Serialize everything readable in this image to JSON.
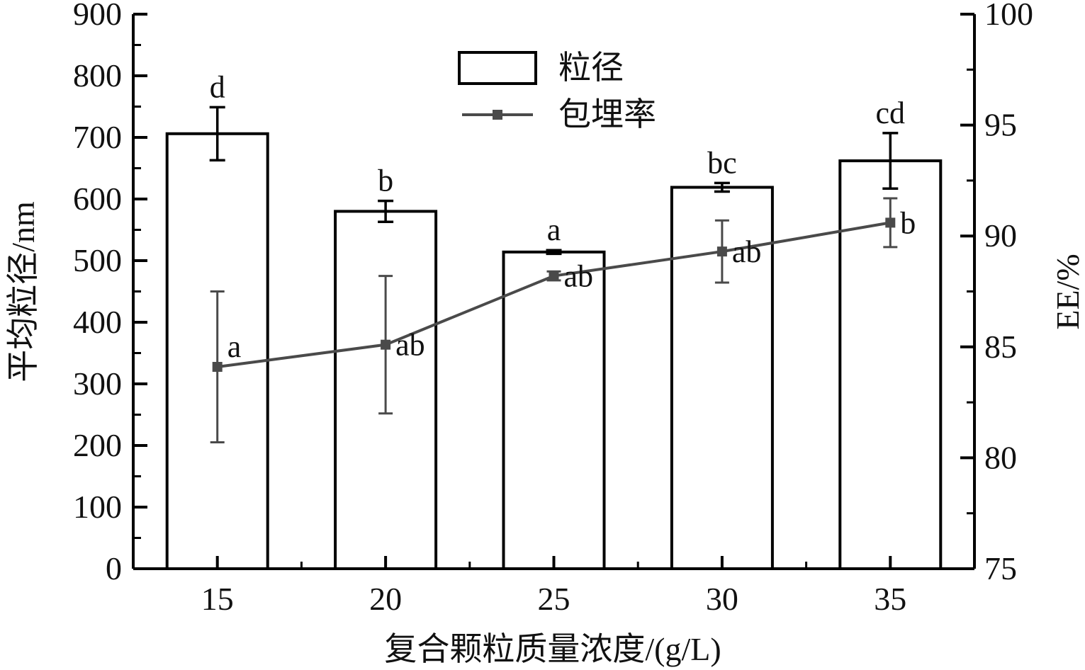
{
  "chart_data": {
    "type": "bar",
    "title": "",
    "categories": [
      "15",
      "20",
      "25",
      "30",
      "35"
    ],
    "xlabel": "复合颗粒质量浓度/(g/L)",
    "ylabel_left": "平均粒径/nm",
    "ylabel_right": "EE/%",
    "ylim_left": [
      0,
      900
    ],
    "ylim_right": [
      75,
      100
    ],
    "yticks_left": [
      "0",
      "100",
      "200",
      "300",
      "400",
      "500",
      "600",
      "700",
      "800",
      "900"
    ],
    "yticks_right": [
      "75",
      "80",
      "85",
      "90",
      "95",
      "100"
    ],
    "grid": false,
    "legend_position": "top-center",
    "series": [
      {
        "name": "粒径",
        "type": "bar",
        "axis": "left",
        "values": [
          706,
          580,
          514,
          619,
          662
        ],
        "errors": [
          43,
          17,
          3,
          7,
          45
        ],
        "letters": [
          "d",
          "b",
          "a",
          "bc",
          "cd"
        ]
      },
      {
        "name": "包埋率",
        "type": "line",
        "axis": "right",
        "values": [
          84.1,
          85.1,
          88.2,
          89.3,
          90.6
        ],
        "errors": [
          3.4,
          3.1,
          0.2,
          1.4,
          1.1
        ],
        "letters": [
          "a",
          "ab",
          "ab",
          "ab",
          "b"
        ]
      }
    ],
    "colors": {
      "bar_fill": "#ffffff",
      "bar_stroke": "#000000",
      "line": "#4a4a4a",
      "axis": "#000000"
    }
  }
}
